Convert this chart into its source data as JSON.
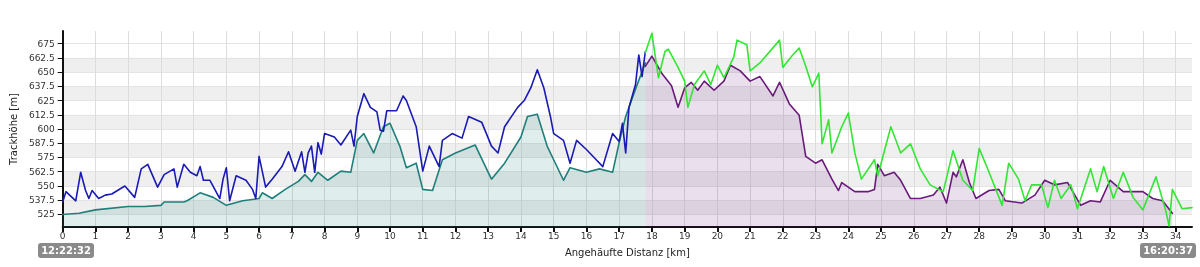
{
  "chart_data": {
    "type": "line",
    "xlabel": "Angehäufte Distanz [km]",
    "ylabel": "Trackhöhe [m]",
    "xlim": [
      0,
      34.5
    ],
    "xticks": [
      0,
      1,
      2,
      3,
      4,
      5,
      6,
      7,
      8,
      9,
      10,
      11,
      12,
      13,
      14,
      15,
      16,
      17,
      18,
      19,
      20,
      21,
      22,
      23,
      24,
      25,
      26,
      27,
      28,
      29,
      30,
      31,
      32,
      33,
      34
    ],
    "ylim": [
      514,
      686
    ],
    "yticks": [
      525,
      537.5,
      550,
      562.5,
      575,
      587.5,
      600,
      612.5,
      625,
      637.5,
      650,
      662.5,
      675
    ],
    "grid": true,
    "marker": "none",
    "line_style": "solid",
    "annotations": [
      "12:22:32",
      "16:20:37"
    ],
    "series": [
      {
        "type": "area",
        "color": "#1f7f7a",
        "x": [
          0,
          0.5,
          1,
          2,
          2.5,
          3,
          3.1,
          3.7,
          3.8,
          4.2,
          4.6,
          5,
          5.5,
          6,
          6.1,
          6.4,
          6.8,
          7.2,
          7.4,
          7.6,
          7.8,
          8.1,
          8.5,
          8.8,
          9,
          9.2,
          9.5,
          9.8,
          10,
          10.3,
          10.5,
          10.8,
          11,
          11.3,
          11.6,
          12,
          12.6,
          13,
          13.1,
          13.5,
          14,
          14.2,
          14.5,
          14.8,
          15,
          15.3,
          15.5,
          16,
          16.4,
          16.8,
          17,
          17.2,
          17.5,
          17.8
        ],
        "values": [
          525,
          526,
          529,
          532,
          532,
          533,
          536,
          536,
          537,
          544,
          540,
          533,
          537,
          539,
          544,
          539,
          547,
          554,
          560,
          554,
          562,
          555,
          563,
          562,
          590,
          596,
          579,
          602,
          605,
          585,
          566,
          570,
          547,
          546,
          573,
          579,
          586,
          562,
          556,
          570,
          593,
          611,
          613,
          585,
          573,
          555,
          566,
          562,
          565,
          562,
          588,
          611,
          635,
          658
        ]
      },
      {
        "type": "area",
        "color": "#6a1a7a",
        "x": [
          17.8,
          18,
          18.3,
          18.6,
          18.8,
          19,
          19.2,
          19.4,
          19.6,
          19.9,
          20.2,
          20.4,
          20.7,
          21,
          21.3,
          21.7,
          21.9,
          22.2,
          22.5,
          22.7,
          23,
          23.2,
          23.5,
          23.7,
          23.8,
          24.2,
          24.6,
          24.8,
          24.9,
          25.1,
          25.4,
          25.6,
          25.9,
          26.2,
          26.6,
          26.8,
          27,
          27.2,
          27.3,
          27.5,
          27.7,
          27.9,
          28.3,
          28.6,
          28.8,
          29.3,
          29.7,
          30,
          30.3,
          30.7,
          31.1,
          31.4,
          31.7,
          32,
          32.4,
          32.7,
          33,
          33.3,
          33.6,
          33.9
        ],
        "values": [
          655,
          664,
          649,
          638,
          619,
          636,
          641,
          634,
          642,
          634,
          642,
          656,
          651,
          642,
          646,
          629,
          641,
          622,
          612,
          576,
          570,
          573,
          556,
          546,
          553,
          545,
          545,
          547,
          569,
          559,
          562,
          555,
          539,
          539,
          542,
          549,
          535,
          562,
          558,
          573,
          553,
          539,
          546,
          547,
          537,
          535,
          542,
          555,
          551,
          553,
          533,
          537,
          536,
          555,
          545,
          545,
          545,
          539,
          537,
          526
        ]
      },
      {
        "color": "#1a1ab4",
        "x": [
          0,
          0.1,
          0.4,
          0.55,
          0.7,
          0.8,
          0.9,
          1.1,
          1.3,
          1.5,
          1.9,
          2.2,
          2.4,
          2.6,
          2.9,
          3.1,
          3.4,
          3.5,
          3.7,
          3.9,
          4.1,
          4.2,
          4.3,
          4.5,
          4.8,
          4.9,
          5,
          5.1,
          5.3,
          5.6,
          5.8,
          5.9,
          6,
          6.2,
          6.4,
          6.7,
          6.9,
          7.1,
          7.3,
          7.4,
          7.5,
          7.6,
          7.7,
          7.8,
          7.9,
          8,
          8.3,
          8.5,
          8.8,
          8.9,
          9,
          9.2,
          9.4,
          9.6,
          9.7,
          9.8,
          9.9,
          10.2,
          10.4,
          10.5,
          10.8,
          11,
          11.2,
          11.5,
          11.6,
          11.9,
          12.2,
          12.4,
          12.8,
          13.1,
          13.3,
          13.5,
          13.9,
          14.1,
          14.3,
          14.5,
          14.7,
          14.9,
          15,
          15.3,
          15.5,
          15.7,
          16,
          16.3,
          16.5,
          16.8,
          17,
          17.1,
          17.2,
          17.3,
          17.5,
          17.6,
          17.7,
          17.8
        ],
        "values": [
          536,
          545,
          537,
          562,
          546,
          539,
          546,
          539,
          542,
          543,
          550,
          540,
          565,
          569,
          549,
          560,
          565,
          549,
          569,
          562,
          559,
          567,
          555,
          555,
          539,
          556,
          566,
          537,
          559,
          555,
          547,
          539,
          576,
          549,
          556,
          567,
          580,
          563,
          580,
          562,
          579,
          585,
          562,
          588,
          578,
          596,
          593,
          586,
          599,
          585,
          611,
          631,
          619,
          615,
          599,
          598,
          616,
          616,
          629,
          625,
          602,
          563,
          585,
          567,
          590,
          596,
          592,
          611,
          606,
          585,
          579,
          602,
          619,
          625,
          636,
          652,
          636,
          611,
          596,
          590,
          570,
          590,
          582,
          573,
          567,
          596,
          589,
          605,
          579,
          619,
          639,
          665,
          646,
          668
        ]
      },
      {
        "color": "#33e633",
        "x": [
          17.8,
          18,
          18.2,
          18.4,
          18.5,
          18.8,
          19,
          19.1,
          19.3,
          19.6,
          19.8,
          20,
          20.2,
          20.5,
          20.6,
          20.9,
          21,
          21.3,
          21.9,
          22,
          22.3,
          22.5,
          22.7,
          22.9,
          23.1,
          23.2,
          23.4,
          23.5,
          23.8,
          24,
          24.2,
          24.4,
          24.8,
          24.9,
          25.3,
          25.6,
          25.9,
          26.2,
          26.5,
          26.9,
          27.2,
          27.5,
          27.8,
          28,
          28.3,
          28.7,
          28.9,
          29.2,
          29.4,
          29.6,
          29.9,
          30.1,
          30.3,
          30.5,
          30.8,
          31,
          31.4,
          31.6,
          31.8,
          32.1,
          32.4,
          32.7,
          33,
          33.4,
          33.7,
          33.8,
          33.9,
          34.2,
          34.5
        ],
        "values": [
          667,
          684,
          645,
          668,
          670,
          654,
          642,
          619,
          639,
          651,
          639,
          656,
          645,
          663,
          678,
          674,
          651,
          658,
          678,
          654,
          665,
          671,
          655,
          637,
          649,
          587,
          608,
          579,
          602,
          614,
          579,
          556,
          573,
          559,
          602,
          579,
          587,
          565,
          551,
          545,
          581,
          555,
          546,
          583,
          562,
          533,
          570,
          556,
          537,
          551,
          551,
          531,
          555,
          539,
          551,
          530,
          565,
          545,
          567,
          539,
          562,
          540,
          529,
          558,
          528,
          515,
          547,
          530,
          531
        ]
      }
    ]
  }
}
